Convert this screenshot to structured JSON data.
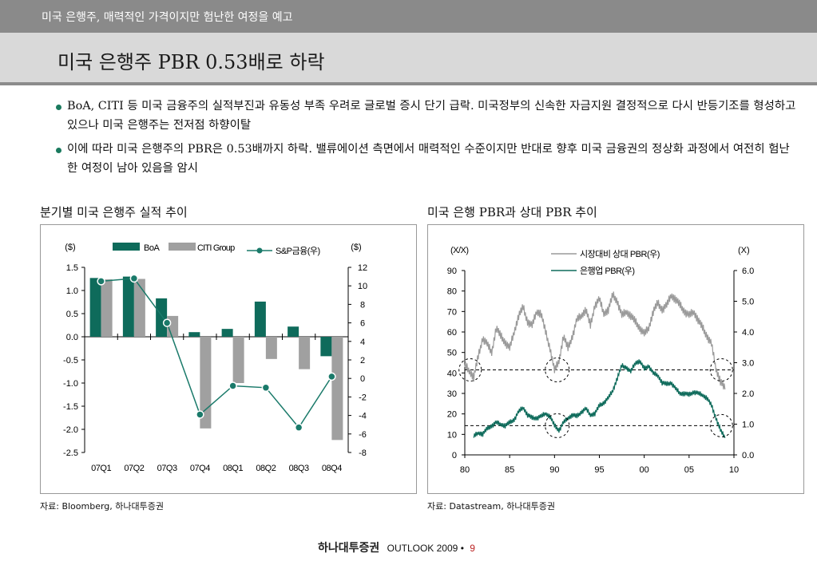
{
  "header": {
    "section": "미국 은행주, 매력적인 가격이지만 험난한 여정을 예고",
    "title": "미국 은행주 PBR 0.53배로 하락"
  },
  "bullets": [
    "BoA, CITI 등 미국 금융주의 실적부진과 유동성 부족 우려로 글로벌 증시 단기 급락. 미국정부의 신속한 자금지원 결정적으로 다시 반등기조를 형성하고 있으나 미국 은행주는 전저점 하향이탈",
    "이에 따라 미국 은행주의 PBR은 0.53배까지 하락. 밸류에이션 측면에서 매력적인 수준이지만 반대로 향후 미국 금융권의 정상화 과정에서 여전히 험난한 여정이 남아 있음을 암시"
  ],
  "left_chart_title": "분기별 미국 은행주 실적 추이",
  "right_chart_title": "미국 은행 PBR과 상대 PBR 추이",
  "left_source": "자료: Bloomberg, 하나대투증권",
  "right_source": "자료: Datastream, 하나대투증권",
  "footer": {
    "logo": "하나대투증권",
    "outlook": "OUTLOOK 2009",
    "bullet": "•",
    "page": "9"
  },
  "colors": {
    "boa": "#0e6b5b",
    "citi": "#a0a0a0",
    "line": "#1a7a6a",
    "relative_pbr": "#9a9a9a",
    "bank_pbr": "#0e6b5b"
  },
  "chart_data": [
    {
      "type": "bar",
      "categories": [
        "07Q1",
        "07Q2",
        "07Q3",
        "07Q4",
        "08Q1",
        "08Q2",
        "08Q3",
        "08Q4"
      ],
      "series": [
        {
          "name": "BoA",
          "axis": "left",
          "values": [
            1.27,
            1.3,
            0.83,
            0.1,
            0.17,
            0.76,
            0.22,
            -0.42
          ]
        },
        {
          "name": "CITI Group",
          "axis": "left",
          "values": [
            1.24,
            1.25,
            0.45,
            -1.98,
            -1.0,
            -0.48,
            -0.7,
            -2.23
          ]
        },
        {
          "name": "S&P금융(우)",
          "type": "line",
          "axis": "right",
          "values": [
            10.5,
            10.8,
            6.0,
            -3.9,
            -0.8,
            -1.0,
            -5.3,
            0.2
          ]
        }
      ],
      "left_unit": "($)",
      "right_unit": "($)",
      "ylim": [
        -2.5,
        1.5
      ],
      "y2lim": [
        -8,
        12
      ],
      "yticks": [
        "1.5",
        "1.0",
        "0.5",
        "0.0",
        "-0.5",
        "-1.0",
        "-1.5",
        "-2.0",
        "-2.5"
      ],
      "y2ticks": [
        "12",
        "10",
        "8",
        "6",
        "4",
        "2",
        "0",
        "-2",
        "-4",
        "-6",
        "-8"
      ]
    },
    {
      "type": "line",
      "x_ticks": [
        "80",
        "85",
        "90",
        "95",
        "00",
        "05",
        "10"
      ],
      "xlim": [
        1980,
        2010
      ],
      "left_unit": "(X/X)",
      "right_unit": "(X)",
      "ylim": [
        0,
        90
      ],
      "y2lim": [
        0.0,
        6.0
      ],
      "yticks": [
        "90",
        "80",
        "70",
        "60",
        "50",
        "40",
        "30",
        "20",
        "10",
        "0"
      ],
      "y2ticks": [
        "6.0",
        "5.0",
        "4.0",
        "3.0",
        "2.0",
        "1.0",
        "0.0"
      ],
      "reference_lines": [
        {
          "axis": "left",
          "value": 41.5
        },
        {
          "axis": "right",
          "value": 0.95
        }
      ],
      "series": [
        {
          "name": "시장대비 상대 PBR(우)",
          "axis": "left",
          "x": [
            1980,
            1980.5,
            1981,
            1981.5,
            1982,
            1982.5,
            1983,
            1983.5,
            1984,
            1984.5,
            1985,
            1985.5,
            1986,
            1986.5,
            1987,
            1987.5,
            1988,
            1988.5,
            1989,
            1989.5,
            1990,
            1990.5,
            1991,
            1991.5,
            1992,
            1992.5,
            1993,
            1993.5,
            1994,
            1994.5,
            1995,
            1995.5,
            1996,
            1996.5,
            1997,
            1997.5,
            1998,
            1998.5,
            1999,
            1999.5,
            2000,
            2000.5,
            2001,
            2001.5,
            2002,
            2002.5,
            2003,
            2003.5,
            2004,
            2004.5,
            2005,
            2005.5,
            2006,
            2006.5,
            2007,
            2007.5,
            2008,
            2008.5,
            2009
          ],
          "values": [
            44,
            41,
            38,
            48,
            57,
            54,
            50,
            62,
            58,
            55,
            52,
            60,
            68,
            72,
            65,
            63,
            70,
            69,
            60,
            52,
            41,
            46,
            58,
            52,
            58,
            66,
            68,
            71,
            63,
            73,
            76,
            69,
            71,
            78,
            75,
            68,
            70,
            68,
            65,
            62,
            59,
            62,
            70,
            74,
            71,
            73,
            78,
            76,
            73,
            70,
            68,
            70,
            66,
            62,
            58,
            54,
            42,
            36,
            32
          ]
        },
        {
          "name": "은행업 PBR(우)",
          "axis": "right",
          "x": [
            1981,
            1981.5,
            1982,
            1982.5,
            1983,
            1983.5,
            1984,
            1984.5,
            1985,
            1985.5,
            1986,
            1986.5,
            1987,
            1987.5,
            1988,
            1988.5,
            1989,
            1989.5,
            1990,
            1990.5,
            1991,
            1991.5,
            1992,
            1992.5,
            1993,
            1993.5,
            1994,
            1994.5,
            1995,
            1995.5,
            1996,
            1996.5,
            1997,
            1997.5,
            1998,
            1998.5,
            1999,
            1999.5,
            2000,
            2000.5,
            2001,
            2001.5,
            2002,
            2002.5,
            2003,
            2003.5,
            2004,
            2004.5,
            2005,
            2005.5,
            2006,
            2006.5,
            2007,
            2007.5,
            2008,
            2008.5,
            2009
          ],
          "values": [
            0.6,
            0.72,
            0.68,
            0.85,
            0.95,
            1.05,
            1.0,
            0.95,
            1.05,
            1.15,
            1.4,
            1.55,
            1.3,
            1.2,
            1.2,
            1.25,
            1.35,
            1.25,
            0.95,
            0.8,
            1.05,
            1.2,
            1.3,
            1.25,
            1.4,
            1.5,
            1.3,
            1.35,
            1.6,
            1.7,
            1.85,
            2.1,
            2.5,
            2.9,
            2.85,
            2.7,
            3.0,
            3.05,
            2.8,
            2.9,
            2.65,
            2.6,
            2.35,
            2.3,
            2.35,
            2.15,
            2.0,
            2.0,
            1.95,
            2.05,
            2.0,
            1.95,
            1.85,
            1.6,
            1.2,
            0.8,
            0.55
          ]
        }
      ]
    }
  ]
}
